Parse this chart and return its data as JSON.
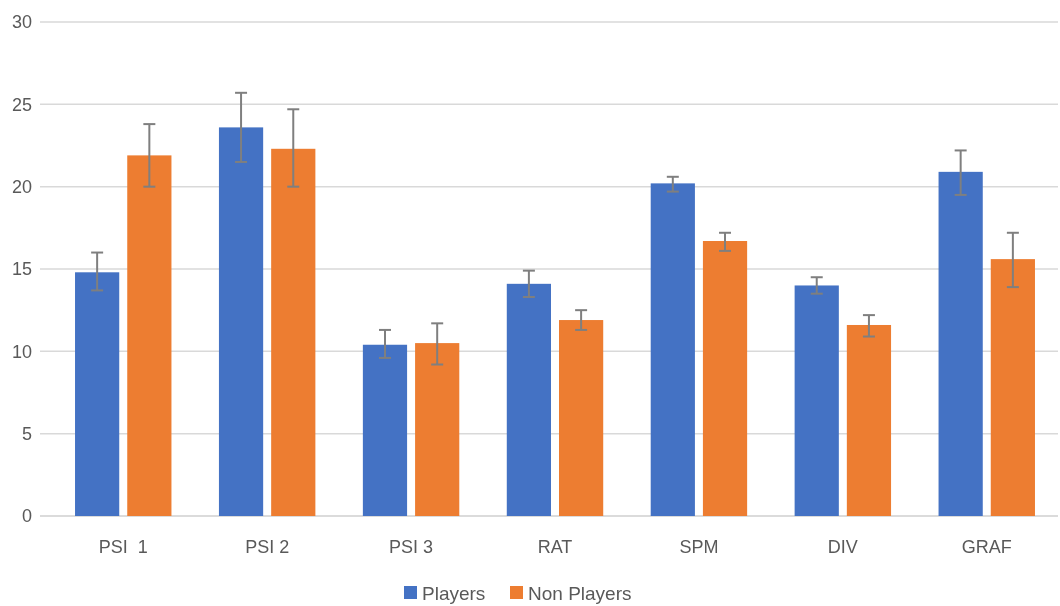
{
  "chart_data": {
    "type": "bar",
    "categories": [
      "PSI  1",
      "PSI 2",
      "PSI 3",
      "RAT",
      "SPM",
      "DIV",
      "GRAF"
    ],
    "series": [
      {
        "name": "Players",
        "color": "#4472c4",
        "values": [
          14.8,
          23.6,
          10.4,
          14.1,
          20.2,
          14.0,
          20.9
        ],
        "errors": [
          [
            13.7,
            16.0
          ],
          [
            21.5,
            25.7
          ],
          [
            9.6,
            11.3
          ],
          [
            13.3,
            14.9
          ],
          [
            19.7,
            20.6
          ],
          [
            13.5,
            14.5
          ],
          [
            19.5,
            22.2
          ]
        ]
      },
      {
        "name": "Non Players",
        "color": "#ed7d31",
        "values": [
          21.9,
          22.3,
          10.5,
          11.9,
          16.7,
          11.6,
          15.6
        ],
        "errors": [
          [
            20.0,
            23.8
          ],
          [
            20.0,
            24.7
          ],
          [
            9.2,
            11.7
          ],
          [
            11.3,
            12.5
          ],
          [
            16.1,
            17.2
          ],
          [
            10.9,
            12.2
          ],
          [
            13.9,
            17.2
          ]
        ]
      }
    ],
    "ylim": [
      0,
      30
    ],
    "yticks": [
      0,
      5,
      10,
      15,
      20,
      25,
      30
    ],
    "grid": "y",
    "legend": "bottom"
  }
}
